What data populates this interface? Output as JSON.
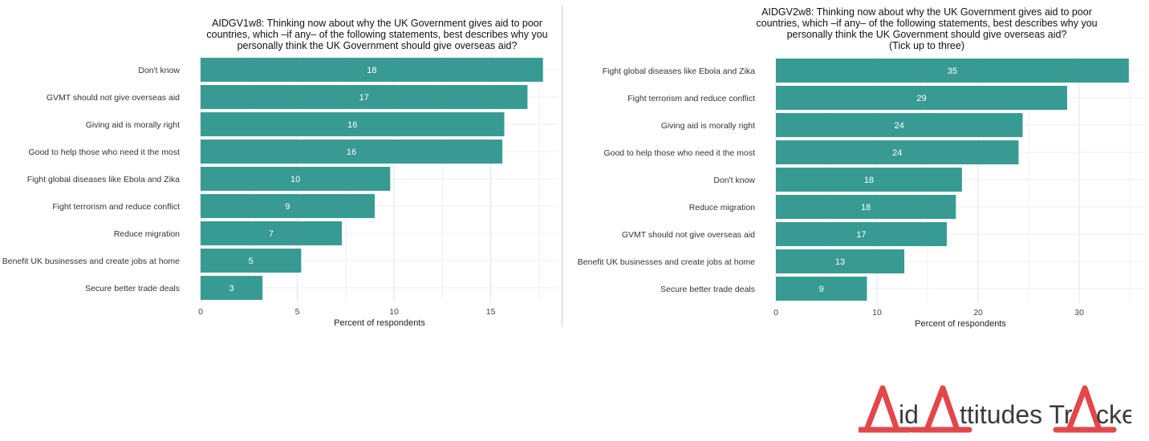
{
  "chart_data": [
    {
      "type": "bar",
      "orientation": "horizontal",
      "title": [
        "AIDGV1w8: Thinking now about why the UK Government gives aid to poor",
        "countries, which –if any– of the following statements, best describes why you",
        "personally think the UK Government should give overseas aid?"
      ],
      "xlabel": "Percent of respondents",
      "ylabel": "",
      "xlim": [
        0,
        18.5
      ],
      "xticks": [
        "0",
        "5",
        "10",
        "15"
      ],
      "grid": true,
      "bar_color": "#379A93",
      "categories": [
        "Don't know",
        "GVMT should not give overseas aid",
        "Giving aid is morally right",
        "Good to help those who need it the most",
        "Fight global diseases like Ebola and Zika",
        "Fight terrorism and reduce conflict",
        "Reduce migration",
        "Benefit UK businesses and create jobs at home",
        "Secure better trade deals"
      ],
      "values": [
        17.7,
        16.9,
        15.7,
        15.6,
        9.8,
        9.0,
        7.3,
        5.2,
        3.2
      ],
      "labels": [
        "18",
        "17",
        "16",
        "16",
        "10",
        "9",
        "7",
        "5",
        "3"
      ]
    },
    {
      "type": "bar",
      "orientation": "horizontal",
      "title": [
        "AIDGV2w8: Thinking now about why the UK Government gives aid to poor",
        "countries, which –if any– of the following statements, best describes why you",
        "personally think the UK Government should give overseas aid?",
        "(Tick up to three)"
      ],
      "xlabel": "Percent of respondents",
      "ylabel": "",
      "xlim": [
        0,
        36.5
      ],
      "xticks": [
        "0",
        "10",
        "20",
        "30"
      ],
      "grid": true,
      "bar_color": "#379A93",
      "categories": [
        "Fight global diseases like Ebola and Zika",
        "Fight terrorism and reduce conflict",
        "Giving aid is morally right",
        "Good to help those who need it the most",
        "Don't know",
        "Reduce migration",
        "GVMT should not give overseas aid",
        "Benefit UK businesses and create jobs at home",
        "Secure better trade deals"
      ],
      "values": [
        34.9,
        28.8,
        24.4,
        24.0,
        18.4,
        17.8,
        16.9,
        12.7,
        9.0
      ],
      "labels": [
        "35",
        "29",
        "24",
        "24",
        "18",
        "18",
        "17",
        "13",
        "9"
      ]
    }
  ],
  "logo": {
    "text": "AidAttitudesTracker",
    "color": "#E2474B",
    "text_color": "#3a3a3a"
  }
}
